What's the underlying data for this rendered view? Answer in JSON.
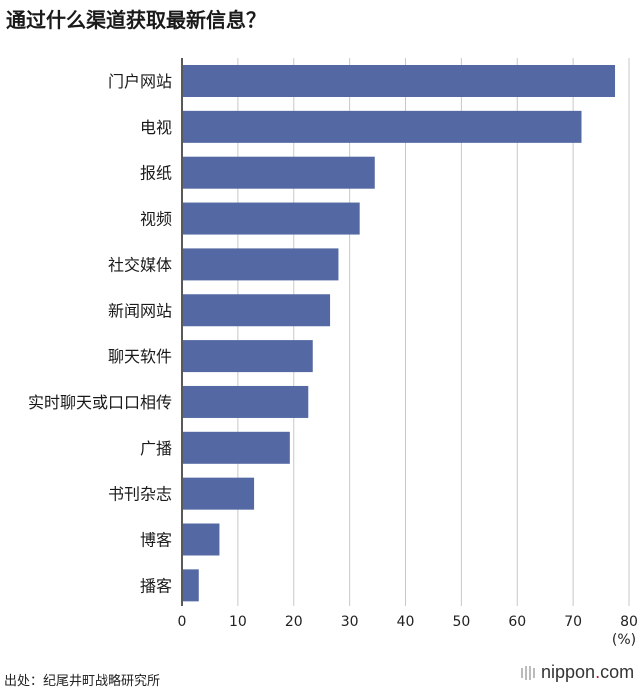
{
  "title": "通过什么渠道获取最新信息？",
  "chart_data": {
    "type": "bar",
    "orientation": "horizontal",
    "categories": [
      "门户网站",
      "电视",
      "报纸",
      "视频",
      "社交媒体",
      "新闻网站",
      "聊天软件",
      "实时聊天或口口相传",
      "广播",
      "书刊杂志",
      "博客",
      "播客"
    ],
    "values": [
      77.5,
      71.5,
      34.5,
      31.8,
      28,
      26.5,
      23.4,
      22.6,
      19.3,
      12.9,
      6.7,
      3
    ],
    "xlim": [
      0,
      80
    ],
    "xticks": [
      0,
      10,
      20,
      30,
      40,
      50,
      60,
      70,
      80
    ],
    "unit_label": "(%)",
    "grid": true,
    "bar_color": "#5469a4"
  },
  "source": "出处：纪尾井町战略研究所",
  "brand": {
    "name_left": "nippon",
    "name_dot": ".",
    "name_right": "com"
  }
}
